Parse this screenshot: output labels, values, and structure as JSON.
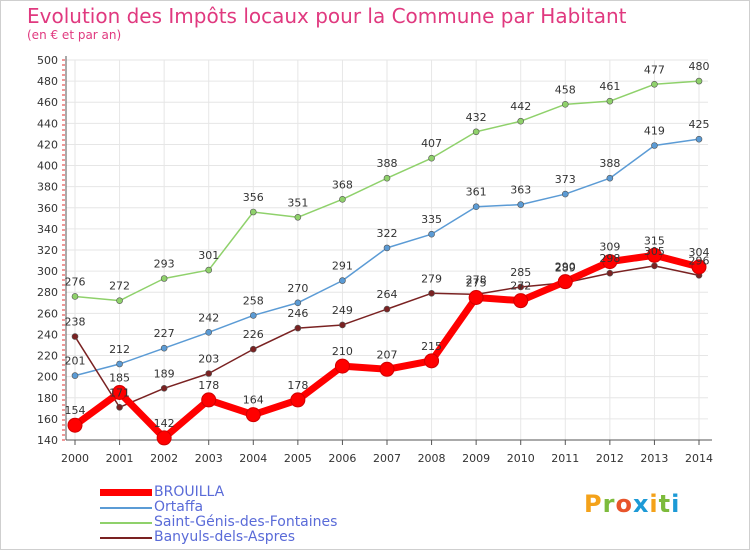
{
  "title": "Evolution des Impôts locaux pour la Commune par Habitant",
  "subtitle": "(en € et par an)",
  "logo": {
    "letters": [
      "P",
      "r",
      "o",
      "x",
      "i",
      "t",
      "i"
    ],
    "colors": [
      "#f4a21a",
      "#7dbb3c",
      "#e8542b",
      "#1d9ad6",
      "#f4a21a",
      "#7dbb3c",
      "#1d9ad6"
    ]
  },
  "chart_data": {
    "type": "line",
    "categories": [
      "2000",
      "2001",
      "2002",
      "2003",
      "2004",
      "2005",
      "2006",
      "2007",
      "2008",
      "2009",
      "2010",
      "2011",
      "2012",
      "2013",
      "2014"
    ],
    "ylim": [
      140,
      500
    ],
    "yticks": [
      140,
      160,
      180,
      200,
      220,
      240,
      260,
      280,
      300,
      320,
      340,
      360,
      380,
      400,
      420,
      440,
      460,
      480,
      500
    ],
    "grid": true,
    "legend_position": "bottom-left",
    "series": [
      {
        "name": "BROUILLA",
        "color": "#ff0000",
        "values": [
          154,
          185,
          142,
          178,
          164,
          178,
          210,
          207,
          215,
          275,
          272,
          290,
          309,
          315,
          304
        ]
      },
      {
        "name": "Ortaffa",
        "color": "#5b9bd5",
        "values": [
          201,
          212,
          227,
          242,
          258,
          270,
          291,
          322,
          335,
          361,
          363,
          373,
          388,
          419,
          425
        ]
      },
      {
        "name": "Saint-Génis-des-Fontaines",
        "color": "#8fd16b",
        "values": [
          276,
          272,
          293,
          301,
          356,
          351,
          368,
          388,
          407,
          432,
          442,
          458,
          461,
          477,
          480
        ]
      },
      {
        "name": "Banyuls-dels-Aspres",
        "color": "#7a2222",
        "values": [
          238,
          171,
          189,
          203,
          226,
          246,
          249,
          264,
          279,
          278,
          285,
          289,
          298,
          305,
          296
        ]
      }
    ]
  }
}
